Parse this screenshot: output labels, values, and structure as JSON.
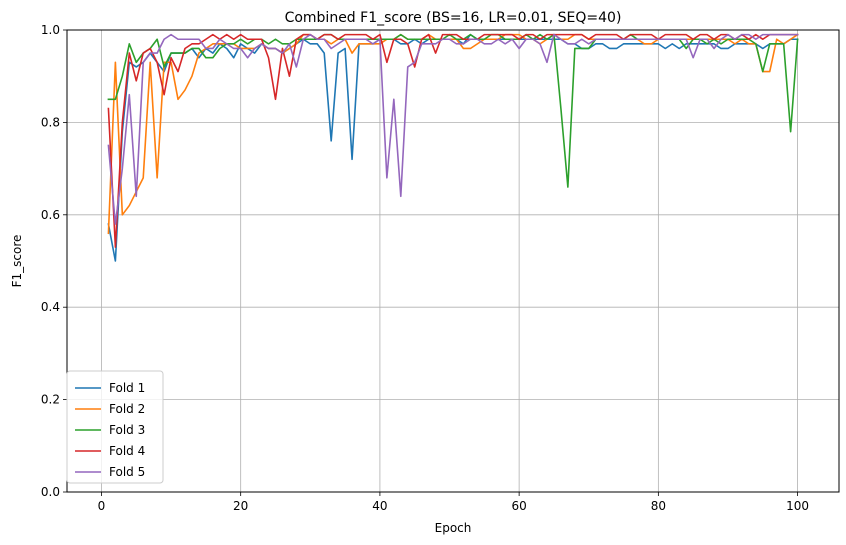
{
  "chart_data": {
    "type": "line",
    "title": "Combined F1_score (BS=16, LR=0.01, SEQ=40)",
    "xlabel": "Epoch",
    "ylabel": "F1_score",
    "xlim": [
      -4.95,
      105.95
    ],
    "ylim": [
      0,
      1
    ],
    "xticks": [
      0,
      20,
      40,
      60,
      80,
      100
    ],
    "yticks": [
      0.0,
      0.2,
      0.4,
      0.6,
      0.8,
      1.0
    ],
    "xtick_labels": [
      "0",
      "20",
      "40",
      "60",
      "80",
      "100"
    ],
    "ytick_labels": [
      "0.0",
      "0.2",
      "0.4",
      "0.6",
      "0.8",
      "1.0"
    ],
    "grid": true,
    "legend_position": "lower-left",
    "x": [
      1,
      2,
      3,
      4,
      5,
      6,
      7,
      8,
      9,
      10,
      11,
      12,
      13,
      14,
      15,
      16,
      17,
      18,
      19,
      20,
      21,
      22,
      23,
      24,
      25,
      26,
      27,
      28,
      29,
      30,
      31,
      32,
      33,
      34,
      35,
      36,
      37,
      38,
      39,
      40,
      41,
      42,
      43,
      44,
      45,
      46,
      47,
      48,
      49,
      50,
      51,
      52,
      53,
      54,
      55,
      56,
      57,
      58,
      59,
      60,
      61,
      62,
      63,
      64,
      65,
      66,
      67,
      68,
      69,
      70,
      71,
      72,
      73,
      74,
      75,
      76,
      77,
      78,
      79,
      80,
      81,
      82,
      83,
      84,
      85,
      86,
      87,
      88,
      89,
      90,
      91,
      92,
      93,
      94,
      95,
      96,
      97,
      98,
      99,
      100
    ],
    "series": [
      {
        "name": "Fold 1",
        "color": "#1f77b4",
        "values": [
          0.58,
          0.5,
          0.78,
          0.93,
          0.92,
          0.93,
          0.95,
          0.93,
          0.91,
          0.95,
          0.95,
          0.95,
          0.96,
          0.94,
          0.96,
          0.95,
          0.97,
          0.96,
          0.94,
          0.97,
          0.96,
          0.95,
          0.97,
          0.96,
          0.96,
          0.95,
          0.96,
          0.97,
          0.98,
          0.97,
          0.97,
          0.95,
          0.76,
          0.95,
          0.96,
          0.72,
          0.97,
          0.97,
          0.97,
          0.98,
          0.98,
          0.98,
          0.97,
          0.97,
          0.98,
          0.97,
          0.98,
          0.98,
          0.98,
          0.98,
          0.98,
          0.97,
          0.99,
          0.98,
          0.98,
          0.98,
          0.98,
          0.98,
          0.98,
          0.98,
          0.98,
          0.98,
          0.98,
          0.98,
          0.98,
          0.98,
          0.97,
          0.97,
          0.96,
          0.96,
          0.97,
          0.97,
          0.96,
          0.96,
          0.97,
          0.97,
          0.97,
          0.97,
          0.97,
          0.97,
          0.96,
          0.97,
          0.96,
          0.97,
          0.97,
          0.97,
          0.97,
          0.97,
          0.96,
          0.96,
          0.97,
          0.97,
          0.97,
          0.97,
          0.96,
          0.97,
          0.97,
          0.97,
          0.98,
          0.98
        ]
      },
      {
        "name": "Fold 2",
        "color": "#ff7f0e",
        "values": [
          0.56,
          0.93,
          0.6,
          0.62,
          0.65,
          0.68,
          0.93,
          0.68,
          0.93,
          0.93,
          0.85,
          0.87,
          0.9,
          0.95,
          0.96,
          0.97,
          0.97,
          0.97,
          0.97,
          0.96,
          0.96,
          0.96,
          0.97,
          0.96,
          0.96,
          0.95,
          0.96,
          0.97,
          0.99,
          0.99,
          0.98,
          0.98,
          0.97,
          0.98,
          0.98,
          0.95,
          0.97,
          0.97,
          0.97,
          0.97,
          0.98,
          0.98,
          0.99,
          0.98,
          0.98,
          0.98,
          0.99,
          0.98,
          0.98,
          0.98,
          0.98,
          0.96,
          0.96,
          0.97,
          0.98,
          0.98,
          0.98,
          0.99,
          0.99,
          0.99,
          0.98,
          0.98,
          0.97,
          0.98,
          0.99,
          0.98,
          0.98,
          0.99,
          0.99,
          0.98,
          0.98,
          0.98,
          0.98,
          0.98,
          0.98,
          0.98,
          0.98,
          0.97,
          0.97,
          0.98,
          0.98,
          0.98,
          0.98,
          0.98,
          0.98,
          0.98,
          0.98,
          0.98,
          0.98,
          0.98,
          0.97,
          0.98,
          0.97,
          0.97,
          0.91,
          0.91,
          0.98,
          0.97,
          0.98,
          0.99
        ]
      },
      {
        "name": "Fold 3",
        "color": "#2ca02c",
        "values": [
          0.85,
          0.85,
          0.9,
          0.97,
          0.93,
          0.95,
          0.96,
          0.98,
          0.92,
          0.95,
          0.95,
          0.95,
          0.96,
          0.96,
          0.94,
          0.94,
          0.96,
          0.97,
          0.97,
          0.98,
          0.97,
          0.98,
          0.98,
          0.97,
          0.98,
          0.97,
          0.97,
          0.98,
          0.98,
          0.98,
          0.98,
          0.99,
          0.99,
          0.98,
          0.98,
          0.98,
          0.98,
          0.98,
          0.98,
          0.98,
          0.98,
          0.98,
          0.99,
          0.98,
          0.98,
          0.98,
          0.98,
          0.98,
          0.98,
          0.99,
          0.98,
          0.98,
          0.99,
          0.98,
          0.98,
          0.99,
          0.99,
          0.98,
          0.98,
          0.98,
          0.99,
          0.98,
          0.99,
          0.98,
          0.99,
          0.83,
          0.66,
          0.96,
          0.96,
          0.96,
          0.98,
          0.98,
          0.98,
          0.98,
          0.98,
          0.99,
          0.98,
          0.98,
          0.98,
          0.98,
          0.98,
          0.98,
          0.98,
          0.96,
          0.98,
          0.98,
          0.97,
          0.98,
          0.97,
          0.98,
          0.98,
          0.98,
          0.98,
          0.97,
          0.91,
          0.97,
          0.97,
          0.97,
          0.78,
          0.98
        ]
      },
      {
        "name": "Fold 4",
        "color": "#d62728",
        "values": [
          0.83,
          0.53,
          0.8,
          0.95,
          0.89,
          0.95,
          0.96,
          0.93,
          0.86,
          0.94,
          0.91,
          0.96,
          0.97,
          0.97,
          0.98,
          0.99,
          0.98,
          0.99,
          0.98,
          0.99,
          0.98,
          0.98,
          0.98,
          0.94,
          0.85,
          0.96,
          0.9,
          0.98,
          0.99,
          0.99,
          0.98,
          0.99,
          0.99,
          0.98,
          0.99,
          0.99,
          0.99,
          0.99,
          0.98,
          0.99,
          0.93,
          0.98,
          0.98,
          0.97,
          0.92,
          0.98,
          0.99,
          0.95,
          0.99,
          0.99,
          0.99,
          0.98,
          0.98,
          0.98,
          0.99,
          0.99,
          0.99,
          0.99,
          0.99,
          0.98,
          0.99,
          0.99,
          0.98,
          0.99,
          0.99,
          0.99,
          0.99,
          0.99,
          0.99,
          0.98,
          0.99,
          0.99,
          0.99,
          0.99,
          0.98,
          0.99,
          0.99,
          0.99,
          0.99,
          0.98,
          0.99,
          0.99,
          0.99,
          0.99,
          0.98,
          0.99,
          0.99,
          0.98,
          0.99,
          0.99,
          0.98,
          0.99,
          0.98,
          0.99,
          0.98,
          0.99,
          0.99,
          0.99,
          0.99,
          0.99
        ]
      },
      {
        "name": "Fold 5",
        "color": "#9467bd",
        "values": [
          0.75,
          0.58,
          0.7,
          0.86,
          0.64,
          0.93,
          0.95,
          0.95,
          0.98,
          0.99,
          0.98,
          0.98,
          0.98,
          0.98,
          0.96,
          0.96,
          0.98,
          0.97,
          0.96,
          0.96,
          0.94,
          0.96,
          0.97,
          0.96,
          0.96,
          0.95,
          0.97,
          0.92,
          0.98,
          0.99,
          0.98,
          0.98,
          0.96,
          0.97,
          0.98,
          0.98,
          0.98,
          0.98,
          0.97,
          0.98,
          0.68,
          0.85,
          0.64,
          0.92,
          0.93,
          0.97,
          0.97,
          0.97,
          0.98,
          0.98,
          0.97,
          0.97,
          0.98,
          0.98,
          0.97,
          0.97,
          0.98,
          0.97,
          0.98,
          0.96,
          0.98,
          0.98,
          0.97,
          0.93,
          0.99,
          0.98,
          0.97,
          0.97,
          0.98,
          0.97,
          0.98,
          0.98,
          0.98,
          0.98,
          0.98,
          0.98,
          0.98,
          0.98,
          0.98,
          0.98,
          0.98,
          0.98,
          0.98,
          0.98,
          0.94,
          0.98,
          0.98,
          0.96,
          0.98,
          0.99,
          0.98,
          0.99,
          0.99,
          0.98,
          0.99,
          0.99,
          0.99,
          0.99,
          0.99,
          0.99
        ]
      }
    ]
  }
}
